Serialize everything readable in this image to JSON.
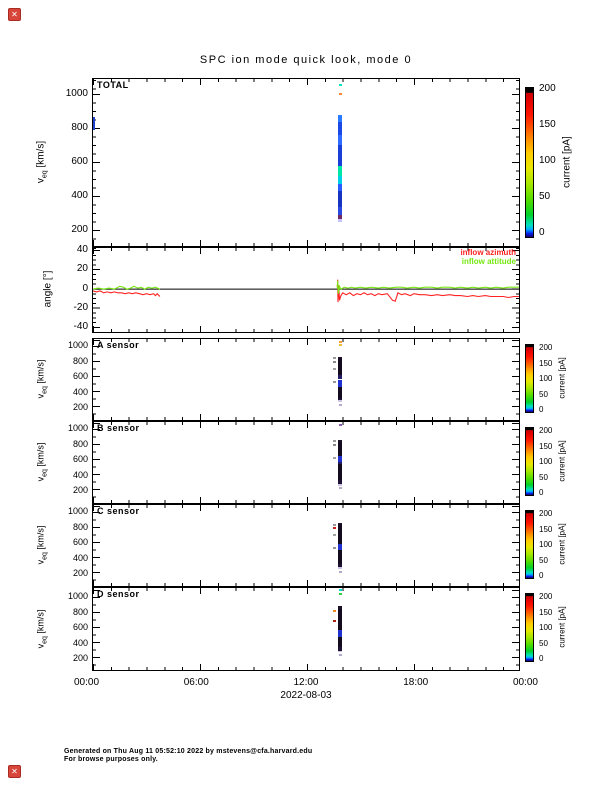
{
  "title": "SPC ion mode quick look, mode 0",
  "icons": {
    "broken_image_glyph": "✕"
  },
  "x_axis": {
    "tick_labels": [
      "00:00",
      "06:00",
      "12:00",
      "18:00",
      "00:00"
    ],
    "date_label": "2022-08-03",
    "hours_range": [
      0,
      24
    ]
  },
  "footer": {
    "line1": "Generated on Thu Aug 11 05:52:10 2022 by mstevens@cfa.harvard.edu",
    "line2": "For browse purposes only."
  },
  "colors": {
    "azimuth_red": "#ff2222",
    "attitude_green": "#77e813",
    "axis_black": "#000000"
  },
  "chart_data": [
    {
      "id": "total",
      "type": "heatmap",
      "name": "TOTAL",
      "ylabel": "veq [km/s]",
      "ylabel_parts": {
        "base": "v",
        "sub": "eq",
        "rest": " [km/s]"
      },
      "ylim": [
        100,
        1095
      ],
      "ytick_labels": [
        "1000",
        "800",
        "600",
        "400",
        "200"
      ],
      "colorbar": {
        "label": "current [pA]",
        "lim": [
          0,
          200
        ],
        "tick_labels": [
          "200",
          "150",
          "100",
          "50",
          "0"
        ]
      },
      "streak": {
        "t0": 13.72,
        "t1": 13.98,
        "segments": [
          {
            "v0": 840,
            "v1": 880,
            "c": "#2a7bff"
          },
          {
            "v0": 760,
            "v1": 840,
            "c": "#1a49e6"
          },
          {
            "v0": 700,
            "v1": 760,
            "c": "#2f6bff"
          },
          {
            "v0": 575,
            "v1": 700,
            "c": "#1a3fd9"
          },
          {
            "v0": 515,
            "v1": 575,
            "c": "#00e8a8"
          },
          {
            "v0": 470,
            "v1": 515,
            "c": "#00cfe8"
          },
          {
            "v0": 430,
            "v1": 470,
            "c": "#2a5bff"
          },
          {
            "v0": 330,
            "v1": 430,
            "c": "#1733c2"
          },
          {
            "v0": 282,
            "v1": 330,
            "c": "#2a49e0"
          },
          {
            "v0": 262,
            "v1": 282,
            "c": "#6e2a66"
          },
          {
            "v0": 245,
            "v1": 262,
            "c": "#c9c2ff"
          }
        ]
      },
      "dots": [
        {
          "t": 13.85,
          "v": 1062,
          "c": "#00e8c8"
        },
        {
          "t": 13.85,
          "v": 1008,
          "c": "#ff8833"
        }
      ],
      "edge_mark": {
        "t": 0,
        "v0": 790,
        "v1": 868,
        "c": "#2244cc"
      }
    },
    {
      "id": "angle",
      "type": "line",
      "name": "angle",
      "ylabel": "angle [°]",
      "ylim": [
        -46,
        44
      ],
      "ytick_labels": [
        "40",
        "20",
        "0",
        "-20",
        "-40"
      ],
      "zero_line": true,
      "legend": [
        {
          "label": "inflow azimuth",
          "c": "#ff2222"
        },
        {
          "label": "inflow attitude",
          "c": "#77e813"
        }
      ],
      "series": [
        {
          "name": "inflow azimuth",
          "c": "#ff2222",
          "segments": [
            [
              [
                0,
                -2
              ],
              [
                0.2,
                -3
              ],
              [
                0.4,
                -2
              ],
              [
                0.6,
                -4
              ],
              [
                0.8,
                -3
              ],
              [
                1.0,
                -4
              ],
              [
                1.2,
                -3
              ],
              [
                1.4,
                -4
              ],
              [
                1.6,
                -4
              ],
              [
                1.8,
                -5
              ],
              [
                2.0,
                -4
              ],
              [
                2.2,
                -5
              ],
              [
                2.4,
                -4
              ],
              [
                2.6,
                -5
              ],
              [
                2.8,
                -6
              ],
              [
                3.0,
                -5
              ],
              [
                3.2,
                -6
              ],
              [
                3.4,
                -5
              ],
              [
                3.5,
                -7
              ],
              [
                3.6,
                -5
              ],
              [
                3.75,
                -8
              ]
            ],
            [
              [
                13.7,
                2
              ],
              [
                13.72,
                10
              ],
              [
                13.74,
                -14
              ],
              [
                13.78,
                4
              ],
              [
                13.82,
                -12
              ],
              [
                13.9,
                -7
              ],
              [
                14.0,
                -4
              ],
              [
                14.2,
                -6
              ],
              [
                14.4,
                -4
              ],
              [
                14.6,
                -7
              ],
              [
                14.8,
                -5
              ],
              [
                15.0,
                -6
              ],
              [
                15.2,
                -4
              ],
              [
                15.4,
                -6
              ],
              [
                15.6,
                -5
              ],
              [
                15.8,
                -7
              ],
              [
                16.0,
                -5
              ],
              [
                16.2,
                -6
              ],
              [
                16.5,
                -5
              ],
              [
                16.8,
                -12
              ],
              [
                16.95,
                -13
              ],
              [
                17.1,
                -4
              ],
              [
                17.3,
                -6
              ],
              [
                17.5,
                -5
              ],
              [
                17.8,
                -7
              ],
              [
                18.0,
                -5
              ],
              [
                18.3,
                -6
              ],
              [
                18.6,
                -6
              ],
              [
                19.0,
                -7
              ],
              [
                19.3,
                -6
              ],
              [
                19.6,
                -7
              ],
              [
                20.0,
                -6
              ],
              [
                20.3,
                -7
              ],
              [
                20.6,
                -7
              ],
              [
                21.0,
                -8
              ],
              [
                21.3,
                -7
              ],
              [
                21.6,
                -8
              ],
              [
                22.0,
                -7
              ],
              [
                22.3,
                -8
              ],
              [
                22.6,
                -8
              ],
              [
                23.0,
                -8
              ],
              [
                23.3,
                -9
              ],
              [
                23.6,
                -8
              ],
              [
                24.0,
                -8
              ]
            ]
          ]
        },
        {
          "name": "inflow attitude",
          "c": "#77e813",
          "segments": [
            [
              [
                0,
                0
              ],
              [
                0.3,
                1
              ],
              [
                0.6,
                0
              ],
              [
                0.9,
                1
              ],
              [
                1.2,
                0
              ],
              [
                1.5,
                3
              ],
              [
                1.7,
                2
              ],
              [
                1.9,
                0
              ],
              [
                2.1,
                1
              ],
              [
                2.3,
                3
              ],
              [
                2.5,
                1
              ],
              [
                2.7,
                2
              ],
              [
                2.9,
                0
              ],
              [
                3.1,
                2
              ],
              [
                3.3,
                1
              ],
              [
                3.5,
                2
              ],
              [
                3.75,
                0
              ]
            ],
            [
              [
                13.7,
                1
              ],
              [
                13.72,
                9
              ],
              [
                13.76,
                -5
              ],
              [
                13.82,
                3
              ],
              [
                13.9,
                0
              ],
              [
                14.1,
                2
              ],
              [
                14.3,
                1
              ],
              [
                14.5,
                2
              ],
              [
                14.7,
                1
              ],
              [
                15.0,
                2
              ],
              [
                15.3,
                1
              ],
              [
                15.6,
                2
              ],
              [
                16.0,
                1
              ],
              [
                16.3,
                2
              ],
              [
                16.6,
                1
              ],
              [
                17.0,
                2
              ],
              [
                17.3,
                2
              ],
              [
                17.6,
                1
              ],
              [
                18.0,
                2
              ],
              [
                18.3,
                1
              ],
              [
                18.6,
                2
              ],
              [
                19.0,
                2
              ],
              [
                19.3,
                1
              ],
              [
                19.6,
                2
              ],
              [
                20.0,
                2
              ],
              [
                20.3,
                1
              ],
              [
                20.6,
                2
              ],
              [
                21.0,
                1
              ],
              [
                21.3,
                2
              ],
              [
                21.6,
                1
              ],
              [
                22.0,
                2
              ],
              [
                22.3,
                1
              ],
              [
                22.6,
                2
              ],
              [
                23.0,
                1
              ],
              [
                23.3,
                2
              ],
              [
                23.6,
                2
              ],
              [
                24.0,
                2
              ]
            ]
          ]
        }
      ]
    },
    {
      "id": "a_sensor",
      "type": "heatmap",
      "name": "A sensor",
      "ylabel": "veq [km/s]",
      "ylabel_parts": {
        "base": "v",
        "sub": "eq",
        "rest": " [km/s]"
      },
      "ylim": [
        0,
        1110
      ],
      "ytick_labels": [
        "1000",
        "800",
        "600",
        "400",
        "200"
      ],
      "colorbar": {
        "label": "current [pA]",
        "lim": [
          0,
          200
        ],
        "tick_labels": [
          "200",
          "150",
          "100",
          "50",
          "0"
        ]
      },
      "streak": {
        "t0": 13.72,
        "t1": 13.98,
        "segments": [
          {
            "v0": 835,
            "v1": 870,
            "c": "#1b1028"
          },
          {
            "v0": 620,
            "v1": 835,
            "c": "#140a1e"
          },
          {
            "v0": 555,
            "v1": 620,
            "c": "#241a66"
          },
          {
            "v0": 455,
            "v1": 555,
            "c": "#2030cf"
          },
          {
            "v0": 300,
            "v1": 455,
            "c": "#140a1e"
          },
          {
            "v0": 268,
            "v1": 300,
            "c": "#1d1233"
          },
          {
            "v0": 242,
            "v1": 268,
            "c": "#cdc6e2"
          }
        ]
      },
      "dots": [
        {
          "t": 13.85,
          "v": 1075,
          "c": "#ff9933"
        },
        {
          "t": 13.85,
          "v": 1030,
          "c": "#e8c040"
        },
        {
          "t": 13.5,
          "v": 850,
          "c": "#9a9a9a"
        },
        {
          "t": 13.5,
          "v": 795,
          "c": "#8a8a8a"
        },
        {
          "t": 13.5,
          "v": 700,
          "c": "#a2a2a2"
        },
        {
          "t": 13.5,
          "v": 520,
          "c": "#969696"
        },
        {
          "t": 13.85,
          "v": 205,
          "c": "#b0a8c4"
        }
      ]
    },
    {
      "id": "b_sensor",
      "type": "heatmap",
      "name": "B sensor",
      "ylabel": "veq [km/s]",
      "ylabel_parts": {
        "base": "v",
        "sub": "eq",
        "rest": " [km/s]"
      },
      "ylim": [
        0,
        1110
      ],
      "ytick_labels": [
        "1000",
        "800",
        "600",
        "400",
        "200"
      ],
      "colorbar": {
        "label": "current [pA]",
        "lim": [
          0,
          200
        ],
        "tick_labels": [
          "200",
          "150",
          "100",
          "50",
          "0"
        ]
      },
      "streak": {
        "t0": 13.72,
        "t1": 13.98,
        "segments": [
          {
            "v0": 830,
            "v1": 868,
            "c": "#1b1028"
          },
          {
            "v0": 640,
            "v1": 830,
            "c": "#140a1e"
          },
          {
            "v0": 565,
            "v1": 640,
            "c": "#2030cf"
          },
          {
            "v0": 540,
            "v1": 565,
            "c": "#241a66"
          },
          {
            "v0": 310,
            "v1": 540,
            "c": "#140a1e"
          },
          {
            "v0": 255,
            "v1": 310,
            "c": "#1d1233"
          },
          {
            "v0": 235,
            "v1": 255,
            "c": "#cdc6e2"
          }
        ]
      },
      "dots": [
        {
          "t": 13.85,
          "v": 1075,
          "c": "#8a5fb0"
        },
        {
          "t": 13.5,
          "v": 845,
          "c": "#9a9a9a"
        },
        {
          "t": 13.5,
          "v": 800,
          "c": "#8a8a8a"
        },
        {
          "t": 13.5,
          "v": 615,
          "c": "#a2a2a2"
        },
        {
          "t": 13.85,
          "v": 205,
          "c": "#b0a8c4"
        }
      ]
    },
    {
      "id": "c_sensor",
      "type": "heatmap",
      "name": "C sensor",
      "ylabel": "veq [km/s]",
      "ylabel_parts": {
        "base": "v",
        "sub": "eq",
        "rest": " [km/s]"
      },
      "ylim": [
        0,
        1110
      ],
      "ytick_labels": [
        "1000",
        "800",
        "600",
        "400",
        "200"
      ],
      "colorbar": {
        "label": "current [pA]",
        "lim": [
          0,
          200
        ],
        "tick_labels": [
          "200",
          "150",
          "100",
          "50",
          "0"
        ]
      },
      "streak": {
        "t0": 13.72,
        "t1": 13.98,
        "segments": [
          {
            "v0": 832,
            "v1": 868,
            "c": "#1b1028"
          },
          {
            "v0": 580,
            "v1": 832,
            "c": "#140a1e"
          },
          {
            "v0": 490,
            "v1": 580,
            "c": "#2030cf"
          },
          {
            "v0": 300,
            "v1": 490,
            "c": "#140a1e"
          },
          {
            "v0": 262,
            "v1": 300,
            "c": "#1d1233"
          },
          {
            "v0": 238,
            "v1": 262,
            "c": "#cdc6e2"
          }
        ]
      },
      "dots": [
        {
          "t": 13.5,
          "v": 840,
          "c": "#9a9a9a"
        },
        {
          "t": 13.5,
          "v": 790,
          "c": "#cc2222"
        },
        {
          "t": 13.5,
          "v": 700,
          "c": "#a2a2a2"
        },
        {
          "t": 13.5,
          "v": 520,
          "c": "#969696"
        },
        {
          "t": 13.85,
          "v": 195,
          "c": "#b0a8c4"
        }
      ]
    },
    {
      "id": "d_sensor",
      "type": "heatmap",
      "name": "D sensor",
      "ylabel": "veq [km/s]",
      "ylabel_parts": {
        "base": "v",
        "sub": "eq",
        "rest": " [km/s]"
      },
      "ylim": [
        0,
        1110
      ],
      "ytick_labels": [
        "1000",
        "800",
        "600",
        "400",
        "200"
      ],
      "colorbar": {
        "label": "current [pA]",
        "lim": [
          0,
          200
        ],
        "tick_labels": [
          "200",
          "150",
          "100",
          "50",
          "0"
        ]
      },
      "streak": {
        "t0": 13.72,
        "t1": 13.98,
        "segments": [
          {
            "v0": 830,
            "v1": 866,
            "c": "#1b1028"
          },
          {
            "v0": 545,
            "v1": 830,
            "c": "#140a1e"
          },
          {
            "v0": 450,
            "v1": 545,
            "c": "#2030cf"
          },
          {
            "v0": 305,
            "v1": 450,
            "c": "#140a1e"
          },
          {
            "v0": 262,
            "v1": 305,
            "c": "#1d1233"
          },
          {
            "v0": 240,
            "v1": 262,
            "c": "#cdc6e2"
          }
        ]
      },
      "dots": [
        {
          "t": 13.85,
          "v": 1080,
          "c": "#00ddcc"
        },
        {
          "t": 13.85,
          "v": 1030,
          "c": "#33cc44"
        },
        {
          "t": 13.5,
          "v": 800,
          "c": "#ee8822"
        },
        {
          "t": 13.5,
          "v": 668,
          "c": "#aa2211"
        },
        {
          "t": 13.85,
          "v": 205,
          "c": "#b0a8c4"
        }
      ]
    }
  ]
}
